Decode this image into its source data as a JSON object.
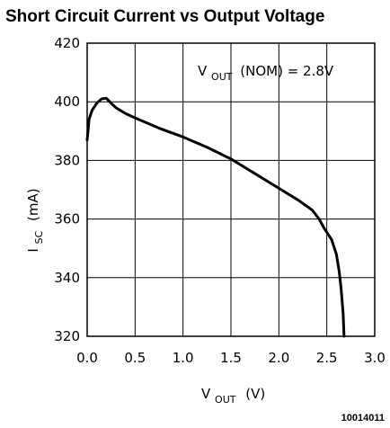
{
  "chart_data": {
    "type": "line",
    "title": "Short Circuit Current vs Output Voltage",
    "xlabel": {
      "main": "V",
      "sub": "OUT",
      "unit": "(V)"
    },
    "ylabel": {
      "main": "I",
      "sub": "SC",
      "unit": "(mA)"
    },
    "xlim": [
      0.0,
      3.0
    ],
    "ylim": [
      320,
      420
    ],
    "x_ticks": [
      "0.0",
      "0.5",
      "1.0",
      "1.5",
      "2.0",
      "2.5",
      "3.0"
    ],
    "y_ticks": [
      "320",
      "340",
      "360",
      "380",
      "400",
      "420"
    ],
    "grid": true,
    "annotation": {
      "main": "V",
      "sub": "OUT",
      "rest": "(NOM) = 2.8V"
    },
    "series": [
      {
        "x": [
          0.0,
          0.02,
          0.05,
          0.1,
          0.15,
          0.2,
          0.25,
          0.3,
          0.4,
          0.5,
          0.75,
          1.0,
          1.25,
          1.5,
          1.75,
          2.0,
          2.2,
          2.35,
          2.42,
          2.47,
          2.5,
          2.55,
          2.6,
          2.63,
          2.65,
          2.67,
          2.68
        ],
        "y": [
          387,
          394,
          397,
          399.5,
          401,
          401.2,
          399.5,
          398,
          396,
          394.5,
          391,
          388,
          384.5,
          380.5,
          375.5,
          370.5,
          366.5,
          363,
          360,
          357,
          355.5,
          353,
          348,
          342,
          336,
          328,
          320
        ]
      }
    ]
  },
  "figure_id": "10014011"
}
